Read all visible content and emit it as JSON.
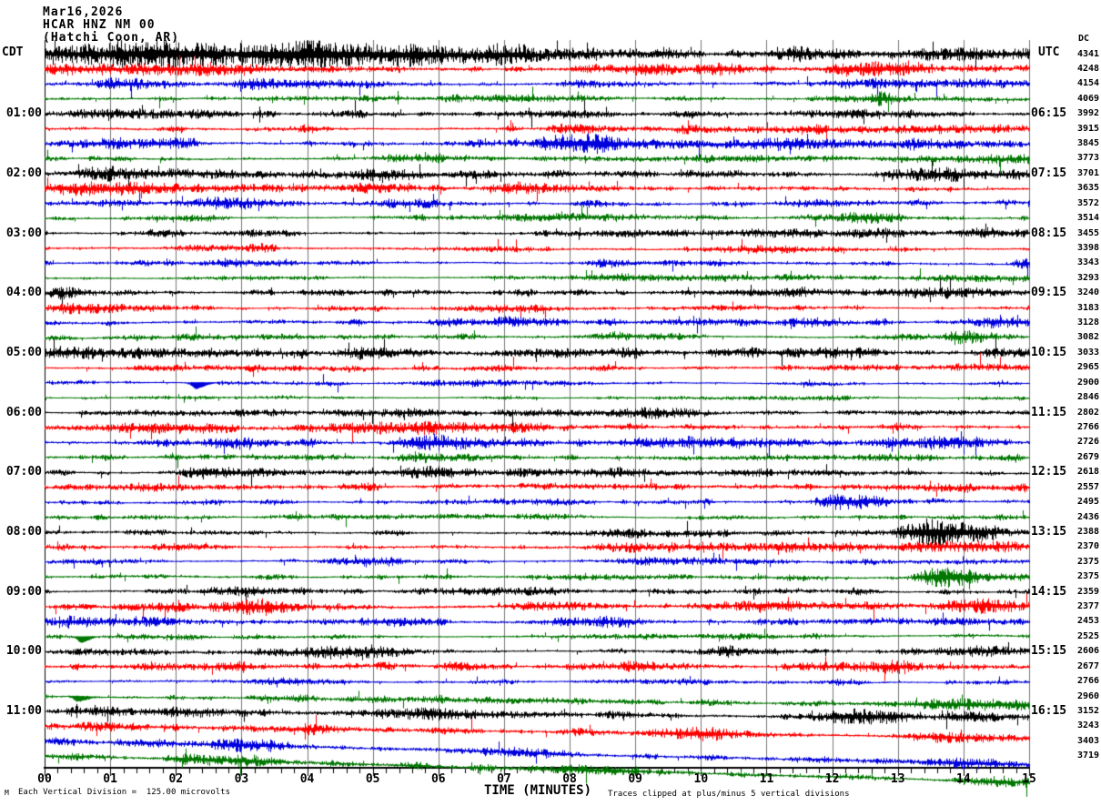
{
  "header": {
    "date": "Mar16,2026",
    "station": "HCAR HNZ NM 00",
    "location": "(Hatchi Coon, AR)"
  },
  "labels": {
    "left_tz": "CDT",
    "right_tz": "UTC",
    "dc_label": "DC"
  },
  "axis": {
    "xlabel": "TIME (MINUTES)",
    "minute_labels": [
      "00",
      "01",
      "02",
      "03",
      "04",
      "05",
      "06",
      "07",
      "08",
      "09",
      "10",
      "11",
      "12",
      "13",
      "14",
      "15"
    ]
  },
  "footer": {
    "scale_note": "Each Vertical Division =  125.00 microvolts",
    "clip_note": "Traces clipped at plus/minus 5 vertical divisions",
    "watermark": "M"
  },
  "colors": {
    "black": "#000000",
    "red": "#ff0000",
    "blue": "#0000dd",
    "green": "#007700",
    "grid": "#777777",
    "background": "#ffffff"
  },
  "chart_data": {
    "type": "line",
    "subtype": "helicorder-seismogram",
    "minutes_per_line": 15,
    "x_range_minutes": [
      0,
      15
    ],
    "vertical_division_microvolts": 125.0,
    "clip_divisions": 5,
    "rows": [
      {
        "cdt": "",
        "utc": "",
        "dc": 4341,
        "color": "black",
        "amp": 3.8,
        "drift": 0,
        "events": [
          [
            0.8,
            5,
            0.7
          ],
          [
            2.6,
            7,
            1.8
          ],
          [
            4.4,
            6,
            1.0
          ],
          [
            7.0,
            4,
            0.25
          ],
          [
            11.4,
            4,
            0.35
          ],
          [
            14.7,
            4.5,
            0.4
          ]
        ]
      },
      {
        "cdt": "",
        "utc": "",
        "dc": 4248,
        "color": "red",
        "amp": 2.8,
        "drift": 0,
        "events": [
          [
            0.7,
            3,
            1.2
          ],
          [
            2.0,
            3,
            0.8
          ],
          [
            9.3,
            2.5,
            0.6
          ],
          [
            12.5,
            3,
            0.9
          ]
        ]
      },
      {
        "cdt": "",
        "utc": "",
        "dc": 4154,
        "color": "blue",
        "amp": 2.2,
        "drift": 0,
        "events": [
          [
            1.1,
            3.5,
            0.4
          ],
          [
            3.6,
            3.5,
            0.8
          ],
          [
            8.4,
            2.5,
            0.5
          ],
          [
            12.4,
            3,
            0.7
          ],
          [
            14.0,
            3,
            0.4
          ]
        ]
      },
      {
        "cdt": "",
        "utc": "",
        "dc": 4069,
        "color": "green",
        "amp": 1.9,
        "drift": 0,
        "events": [
          [
            6.5,
            1.5,
            1.2
          ],
          [
            12.7,
            5,
            0.12
          ],
          [
            13.6,
            2,
            0.5
          ]
        ]
      },
      {
        "cdt": "01:00",
        "utc": "06:15",
        "dc": 3992,
        "color": "black",
        "amp": 2.3,
        "drift": 0,
        "events": [
          [
            0.9,
            2,
            0.8
          ],
          [
            7.8,
            3.5,
            0.5
          ],
          [
            12.2,
            3.5,
            0.6
          ]
        ]
      },
      {
        "cdt": "",
        "utc": "",
        "dc": 3915,
        "color": "red",
        "amp": 2.4,
        "drift": 0,
        "events": [
          [
            7.9,
            4,
            0.25
          ],
          [
            11.0,
            2.5,
            1.5
          ],
          [
            13.5,
            2.5,
            0.8
          ]
        ]
      },
      {
        "cdt": "",
        "utc": "",
        "dc": 3845,
        "color": "blue",
        "amp": 2.6,
        "drift": 0,
        "events": [
          [
            1.0,
            4,
            0.4
          ],
          [
            7.9,
            8,
            0.45
          ],
          [
            9.5,
            3,
            1.5
          ],
          [
            12.0,
            2.5,
            1.5
          ]
        ]
      },
      {
        "cdt": "",
        "utc": "",
        "dc": 3773,
        "color": "green",
        "amp": 2.2,
        "drift": 0,
        "events": [
          [
            5.3,
            3.5,
            0.3
          ],
          [
            9.0,
            2,
            0.8
          ],
          [
            13.4,
            2.5,
            0.8
          ]
        ]
      },
      {
        "cdt": "02:00",
        "utc": "07:15",
        "dc": 3701,
        "color": "black",
        "amp": 2.8,
        "drift": 0,
        "events": [
          [
            1.3,
            3,
            1.0
          ],
          [
            5.0,
            2.5,
            0.8
          ],
          [
            13.2,
            3.5,
            0.5
          ]
        ]
      },
      {
        "cdt": "",
        "utc": "",
        "dc": 3635,
        "color": "red",
        "amp": 2.6,
        "drift": 0,
        "events": [
          [
            0.8,
            4.5,
            0.9
          ],
          [
            4.6,
            3,
            0.3
          ],
          [
            7.5,
            2.5,
            0.6
          ]
        ]
      },
      {
        "cdt": "",
        "utc": "",
        "dc": 3572,
        "color": "blue",
        "amp": 2.2,
        "drift": 0,
        "events": [
          [
            0.9,
            3.5,
            0.15
          ],
          [
            2.8,
            4,
            0.5
          ],
          [
            5.2,
            3,
            0.4
          ],
          [
            11.7,
            3,
            0.5
          ]
        ]
      },
      {
        "cdt": "",
        "utc": "",
        "dc": 3514,
        "color": "green",
        "amp": 1.9,
        "drift": 0,
        "events": [
          [
            7.0,
            1.5,
            0.8
          ],
          [
            12.35,
            5,
            0.25
          ]
        ]
      },
      {
        "cdt": "03:00",
        "utc": "08:15",
        "dc": 3455,
        "color": "black",
        "amp": 2.3,
        "drift": 0,
        "events": [
          [
            8.6,
            2.5,
            1.0
          ],
          [
            11.2,
            2.5,
            0.8
          ],
          [
            14.5,
            2.5,
            0.5
          ]
        ]
      },
      {
        "cdt": "",
        "utc": "",
        "dc": 3398,
        "color": "red",
        "amp": 2.3,
        "drift": 0,
        "events": [
          [
            2.3,
            3,
            0.4
          ],
          [
            10.8,
            3,
            0.5
          ]
        ]
      },
      {
        "cdt": "",
        "utc": "",
        "dc": 3343,
        "color": "blue",
        "amp": 1.8,
        "drift": 0,
        "events": [
          [
            2.7,
            3.5,
            0.4
          ],
          [
            8.5,
            2.5,
            0.2
          ],
          [
            10.2,
            2.5,
            0.2
          ],
          [
            14.85,
            4,
            0.12
          ]
        ]
      },
      {
        "cdt": "",
        "utc": "",
        "dc": 3293,
        "color": "green",
        "amp": 1.7,
        "drift": 0,
        "events": [
          [
            8.8,
            2,
            1.5
          ],
          [
            14.3,
            2,
            0.6
          ]
        ]
      },
      {
        "cdt": "04:00",
        "utc": "09:15",
        "dc": 3240,
        "color": "black",
        "amp": 2.3,
        "drift": 0,
        "events": [
          [
            0.25,
            5,
            0.15
          ],
          [
            11.0,
            3,
            1.2
          ],
          [
            13.8,
            2.5,
            0.6
          ]
        ]
      },
      {
        "cdt": "",
        "utc": "",
        "dc": 3183,
        "color": "red",
        "amp": 1.9,
        "drift": 0,
        "events": [
          [
            0.5,
            4,
            0.3
          ],
          [
            6.8,
            2,
            0.8
          ]
        ]
      },
      {
        "cdt": "",
        "utc": "",
        "dc": 3128,
        "color": "blue",
        "amp": 2.2,
        "drift": 0,
        "events": [
          [
            6.5,
            2,
            0.8
          ],
          [
            11.55,
            4.5,
            0.35
          ],
          [
            14.4,
            3.5,
            0.3
          ]
        ]
      },
      {
        "cdt": "",
        "utc": "",
        "dc": 3082,
        "color": "green",
        "amp": 2.0,
        "drift": 0,
        "events": [
          [
            2.5,
            1.5,
            0.8
          ],
          [
            8.6,
            2.5,
            0.5
          ],
          [
            13.95,
            6,
            0.22
          ]
        ]
      },
      {
        "cdt": "05:00",
        "utc": "10:15",
        "dc": 3033,
        "color": "black",
        "amp": 3.2,
        "drift": 0,
        "events": [
          [
            1.0,
            4,
            1.2
          ],
          [
            4.75,
            4.5,
            0.3
          ],
          [
            7.5,
            3,
            0.9
          ]
        ]
      },
      {
        "cdt": "",
        "utc": "",
        "dc": 2965,
        "color": "red",
        "amp": 1.9,
        "drift": 0,
        "events": [
          [
            3.0,
            1.5,
            0.8
          ],
          [
            12.0,
            1.5,
            0.8
          ]
        ]
      },
      {
        "cdt": "",
        "utc": "",
        "dc": 2900,
        "color": "blue",
        "amp": 1.7,
        "drift": 0,
        "events": [
          [
            2.3,
            -6,
            0.08
          ],
          [
            6.2,
            2.5,
            0.8
          ]
        ]
      },
      {
        "cdt": "",
        "utc": "",
        "dc": 2846,
        "color": "green",
        "amp": 1.3,
        "drift": 0,
        "events": [
          [
            10.0,
            1,
            1.0
          ]
        ]
      },
      {
        "cdt": "06:00",
        "utc": "11:15",
        "dc": 2802,
        "color": "black",
        "amp": 1.9,
        "drift": 0,
        "events": [
          [
            2.1,
            2,
            0.5
          ],
          [
            5.3,
            3.5,
            0.4
          ],
          [
            7.7,
            2.5,
            0.4
          ],
          [
            9.3,
            2.5,
            0.5
          ]
        ]
      },
      {
        "cdt": "",
        "utc": "",
        "dc": 2766,
        "color": "red",
        "amp": 2.6,
        "drift": 0,
        "events": [
          [
            0.8,
            2.5,
            0.7
          ],
          [
            4.8,
            3.5,
            0.7
          ],
          [
            6.0,
            3.5,
            0.4
          ]
        ]
      },
      {
        "cdt": "",
        "utc": "",
        "dc": 2726,
        "color": "blue",
        "amp": 2.4,
        "drift": 0,
        "events": [
          [
            2.65,
            4,
            0.3
          ],
          [
            5.95,
            6,
            0.4
          ],
          [
            9.8,
            3,
            0.7
          ],
          [
            13.2,
            3.5,
            0.6
          ]
        ]
      },
      {
        "cdt": "",
        "utc": "",
        "dc": 2679,
        "color": "green",
        "amp": 2.3,
        "drift": 0,
        "events": [
          [
            5.9,
            3.5,
            0.5
          ],
          [
            11.0,
            2,
            0.8
          ],
          [
            14.72,
            6,
            0.06
          ]
        ]
      },
      {
        "cdt": "07:00",
        "utc": "12:15",
        "dc": 2618,
        "color": "black",
        "amp": 2.1,
        "drift": 0,
        "events": [
          [
            2.4,
            4,
            0.4
          ],
          [
            5.8,
            3,
            0.6
          ],
          [
            9.0,
            2,
            0.8
          ]
        ]
      },
      {
        "cdt": "",
        "utc": "",
        "dc": 2557,
        "color": "red",
        "amp": 2.3,
        "drift": 0,
        "events": [
          [
            1.5,
            2,
            0.8
          ],
          [
            8.0,
            2,
            1.0
          ],
          [
            13.0,
            2,
            0.8
          ]
        ]
      },
      {
        "cdt": "",
        "utc": "",
        "dc": 2495,
        "color": "blue",
        "amp": 2.1,
        "drift": 0,
        "events": [
          [
            12.05,
            7.5,
            0.3
          ]
        ]
      },
      {
        "cdt": "",
        "utc": "",
        "dc": 2436,
        "color": "green",
        "amp": 1.7,
        "drift": 0,
        "events": [
          [
            5.0,
            1.5,
            1.0
          ]
        ]
      },
      {
        "cdt": "08:00",
        "utc": "13:15",
        "dc": 2388,
        "color": "black",
        "amp": 2.1,
        "drift": 0,
        "events": [
          [
            9.0,
            2,
            0.8
          ],
          [
            13.45,
            13,
            0.45
          ]
        ]
      },
      {
        "cdt": "",
        "utc": "",
        "dc": 2370,
        "color": "red",
        "amp": 2.4,
        "drift": 0,
        "events": [
          [
            11.0,
            3,
            2.2
          ],
          [
            14.0,
            3,
            0.8
          ]
        ]
      },
      {
        "cdt": "",
        "utc": "",
        "dc": 2375,
        "color": "blue",
        "amp": 1.9,
        "drift": 0,
        "events": [
          [
            4.6,
            3.5,
            0.4
          ],
          [
            9.3,
            2.5,
            0.5
          ]
        ]
      },
      {
        "cdt": "",
        "utc": "",
        "dc": 2375,
        "color": "green",
        "amp": 2.1,
        "drift": 0,
        "events": [
          [
            8.4,
            2.5,
            0.5
          ],
          [
            13.58,
            10,
            0.32
          ]
        ]
      },
      {
        "cdt": "09:00",
        "utc": "14:15",
        "dc": 2359,
        "color": "black",
        "amp": 2.0,
        "drift": 0,
        "events": [
          [
            2.9,
            3,
            0.4
          ],
          [
            6.5,
            3.5,
            0.8
          ],
          [
            12.35,
            3.5,
            0.15
          ]
        ]
      },
      {
        "cdt": "",
        "utc": "",
        "dc": 2377,
        "color": "red",
        "amp": 2.9,
        "drift": 0,
        "events": [
          [
            2.9,
            4.5,
            0.4
          ],
          [
            7.6,
            4,
            0.5
          ],
          [
            10.9,
            3.5,
            0.7
          ],
          [
            14.3,
            3,
            0.5
          ]
        ]
      },
      {
        "cdt": "",
        "utc": "",
        "dc": 2453,
        "color": "blue",
        "amp": 2.6,
        "drift": 0,
        "events": [
          [
            0.7,
            3.5,
            0.8
          ],
          [
            8.0,
            3.5,
            0.5
          ],
          [
            12.8,
            2.5,
            0.6
          ]
        ]
      },
      {
        "cdt": "",
        "utc": "",
        "dc": 2525,
        "color": "green",
        "amp": 1.6,
        "drift": 0,
        "events": [
          [
            0.55,
            -6,
            0.07
          ],
          [
            8.8,
            2,
            1.2
          ]
        ]
      },
      {
        "cdt": "10:00",
        "utc": "15:15",
        "dc": 2606,
        "color": "black",
        "amp": 2.0,
        "drift": 0,
        "events": [
          [
            4.3,
            3.5,
            0.7
          ],
          [
            10.3,
            3.5,
            0.4
          ],
          [
            13.9,
            3.5,
            0.7
          ]
        ]
      },
      {
        "cdt": "",
        "utc": "",
        "dc": 2677,
        "color": "red",
        "amp": 2.8,
        "drift": 0,
        "events": [
          [
            2.0,
            2.5,
            0.8
          ],
          [
            8.9,
            3.5,
            0.5
          ],
          [
            12.5,
            3.5,
            0.6
          ]
        ]
      },
      {
        "cdt": "",
        "utc": "",
        "dc": 2766,
        "color": "blue",
        "amp": 1.8,
        "drift": 0,
        "events": [
          [
            3.7,
            3.5,
            0.4
          ],
          [
            9.0,
            2,
            0.8
          ]
        ]
      },
      {
        "cdt": "",
        "utc": "",
        "dc": 2960,
        "color": "green",
        "amp": 2.1,
        "drift": 10,
        "events": [
          [
            0.5,
            -5,
            0.08
          ],
          [
            6.0,
            2,
            1.0
          ],
          [
            13.6,
            3.5,
            0.9
          ]
        ]
      },
      {
        "cdt": "11:00",
        "utc": "16:15",
        "dc": 3152,
        "color": "black",
        "amp": 2.7,
        "drift": 6,
        "events": [
          [
            1.7,
            2.5,
            0.6
          ],
          [
            5.6,
            4,
            1.1
          ],
          [
            12.4,
            5,
            0.4
          ],
          [
            14.1,
            3.5,
            0.5
          ]
        ]
      },
      {
        "cdt": "",
        "utc": "",
        "dc": 3243,
        "color": "red",
        "amp": 2.4,
        "drift": 14,
        "events": [
          [
            3.2,
            2.5,
            0.8
          ],
          [
            9.7,
            3.5,
            0.6
          ],
          [
            13.9,
            3.5,
            0.7
          ]
        ]
      },
      {
        "cdt": "",
        "utc": "",
        "dc": 3403,
        "color": "blue",
        "amp": 2.3,
        "drift": 25,
        "events": [
          [
            2.9,
            3.5,
            0.5
          ],
          [
            6.5,
            2.5,
            0.7
          ],
          [
            13.8,
            3.5,
            0.7
          ]
        ]
      },
      {
        "cdt": "",
        "utc": "",
        "dc": 3719,
        "color": "green",
        "amp": 2.1,
        "drift": 28,
        "events": [
          [
            2.5,
            3.5,
            0.6
          ],
          [
            8.3,
            3.5,
            0.6
          ],
          [
            14.5,
            4,
            0.5
          ]
        ]
      }
    ]
  }
}
